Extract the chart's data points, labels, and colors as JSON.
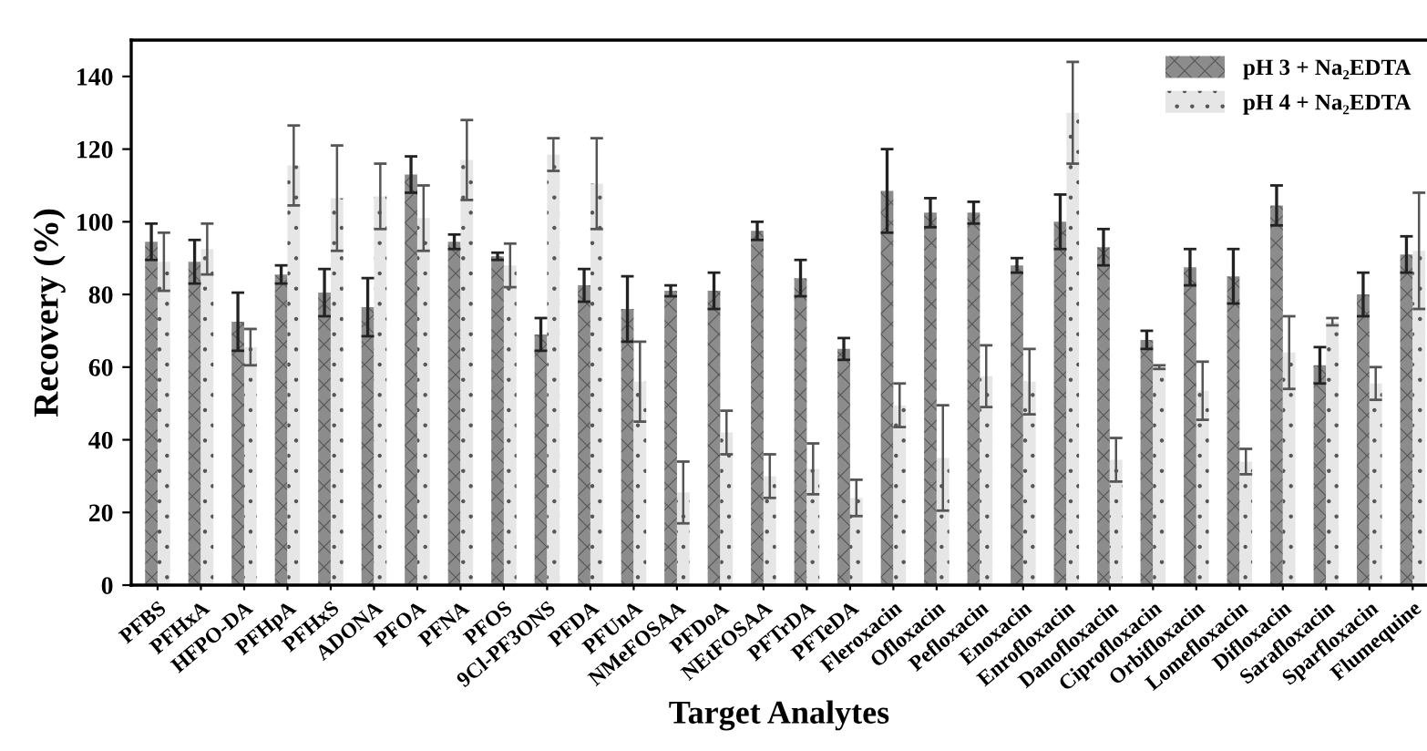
{
  "chart_data": {
    "type": "bar",
    "xlabel": "Target Analytes",
    "ylabel": "Recovery (%)",
    "categories": [
      "PFBS",
      "PFHxA",
      "HFPO-DA",
      "PFHpA",
      "PFHxS",
      "ADONA",
      "PFOA",
      "PFNA",
      "PFOS",
      "9Cl-PF3ONS",
      "PFDA",
      "PFUnA",
      "NMeFOSAA",
      "PFDoA",
      "NEtFOSAA",
      "PFTrDA",
      "PFTeDA",
      "Fleroxacin",
      "Ofloxacin",
      "Pefloxacin",
      "Enoxacin",
      "Enrofloxacin",
      "Danofloxacin",
      "Ciprofloxacin",
      "Orbifloxacin",
      "Lomefloxacin",
      "Difloxacin",
      "Sarafloxacin",
      "Sparfloxacin",
      "Flumequine"
    ],
    "series": [
      {
        "name": "pH 3 + Na₂EDTA",
        "color": "#8c8c8c",
        "values": [
          94.5,
          89,
          72.5,
          85.5,
          80.5,
          76.5,
          113,
          94.5,
          90.5,
          69,
          82.5,
          76,
          81,
          81,
          97.5,
          84.5,
          65,
          108.5,
          102.5,
          102.5,
          88,
          100,
          93,
          67.5,
          87.5,
          85,
          104.5,
          60.5,
          80,
          91
        ],
        "errors": [
          5,
          6,
          8,
          2.5,
          6.5,
          8,
          5,
          2,
          1,
          4.5,
          4.5,
          9,
          1.5,
          5,
          2.5,
          5,
          3,
          11.5,
          4,
          3,
          2,
          7.5,
          5,
          2.5,
          5,
          7.5,
          5.5,
          5,
          6,
          5
        ]
      },
      {
        "name": "pH 4 + Na₂EDTA",
        "color": "#e6e6e6",
        "values": [
          89,
          92.5,
          65.5,
          115.5,
          106.5,
          107,
          101,
          117,
          88,
          118.5,
          110.5,
          56,
          25.5,
          42,
          30,
          32,
          24,
          49.5,
          35,
          57.5,
          56,
          130,
          34.5,
          60,
          53.5,
          34,
          64,
          72.5,
          55.5,
          92
        ],
        "errors": [
          8,
          7,
          5,
          11,
          14.5,
          9,
          9,
          11,
          6,
          4.5,
          12.5,
          11,
          8.5,
          6,
          6,
          7,
          5,
          6,
          14.5,
          8.5,
          9,
          14,
          6,
          0.5,
          8,
          3.5,
          10,
          1,
          4.5,
          16
        ]
      }
    ],
    "ylim": [
      0,
      150
    ],
    "yticks": [
      0,
      20,
      40,
      60,
      80,
      100,
      120,
      140
    ],
    "grid": false,
    "legend": "top right"
  }
}
